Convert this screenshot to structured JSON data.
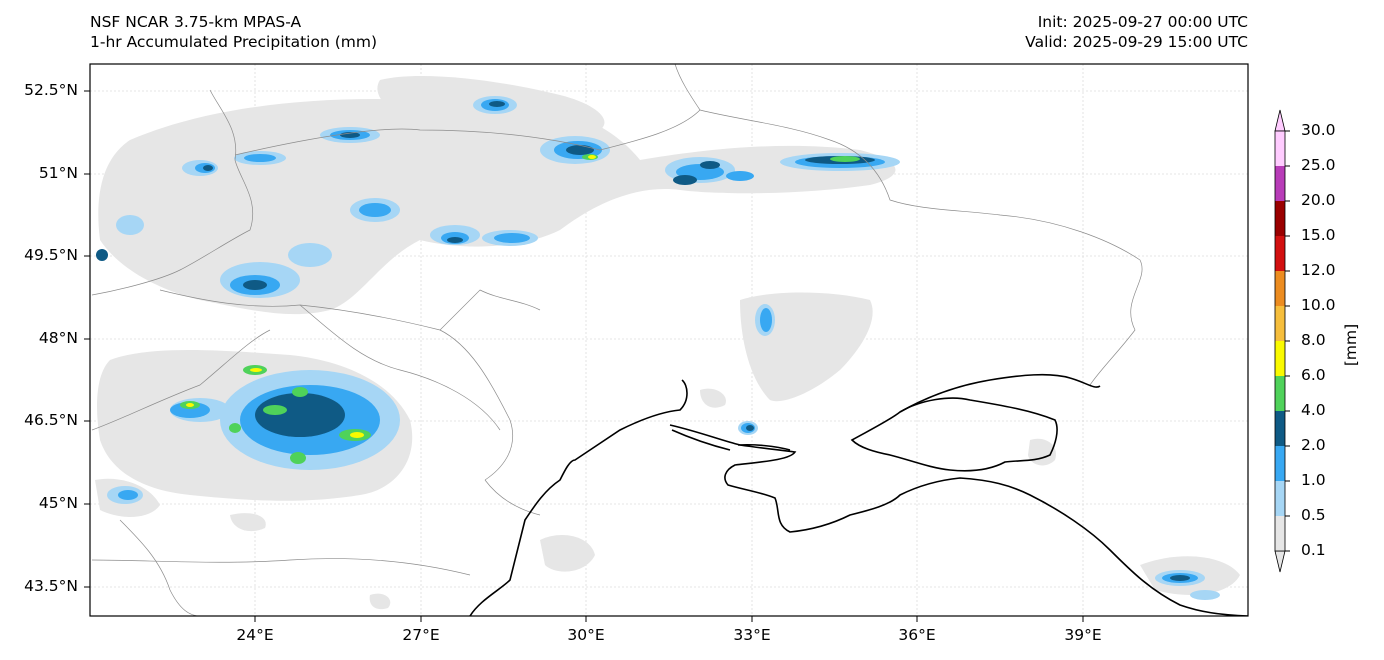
{
  "header": {
    "model": "NSF NCAR 3.75-km MPAS-A",
    "field": "1-hr Accumulated Precipitation (mm)",
    "init": "Init: 2025-09-27 00:00 UTC",
    "valid": "Valid: 2025-09-29 15:00 UTC"
  },
  "axes": {
    "lat_labels": [
      "52.5°N",
      "51°N",
      "49.5°N",
      "48°N",
      "46.5°N",
      "45°N",
      "43.5°N"
    ],
    "lon_labels": [
      "24°E",
      "27°E",
      "30°E",
      "33°E",
      "36°E",
      "39°E"
    ]
  },
  "colorbar": {
    "unit": "[mm]",
    "levels": [
      "0.1",
      "0.5",
      "1.0",
      "2.0",
      "4.0",
      "6.0",
      "8.0",
      "10.0",
      "12.0",
      "15.0",
      "20.0",
      "25.0",
      "30.0"
    ],
    "colors": [
      "#e6e6e6",
      "#a6d6f5",
      "#38a8f2",
      "#0f5a85",
      "#4fd25a",
      "#fafa00",
      "#f6be3c",
      "#ec8c20",
      "#d21010",
      "#9a0000",
      "#b83cb8",
      "#ffccff"
    ]
  },
  "map": {
    "coastline_color": "#000000",
    "border_color": "#8c8c8c",
    "grid_color": "#dddddd"
  }
}
